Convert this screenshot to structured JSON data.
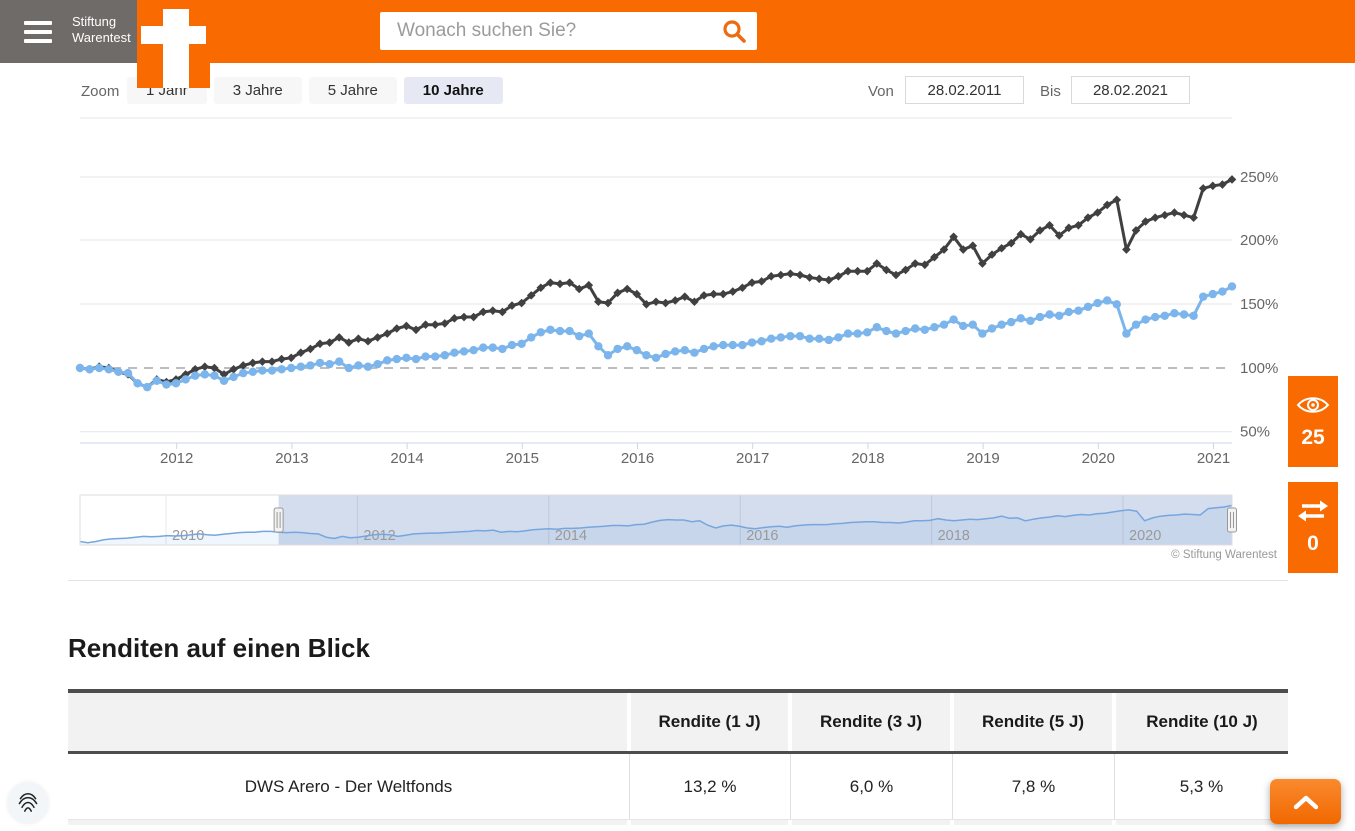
{
  "header": {
    "brand": {
      "line1": "Stiftung",
      "line2": "Warentest"
    },
    "search": {
      "placeholder": "Wonach suchen Sie?"
    }
  },
  "toolbar": {
    "zoom_label": "Zoom",
    "ranges": [
      {
        "label": "1 Jahr",
        "selected": false
      },
      {
        "label": "3 Jahre",
        "selected": false
      },
      {
        "label": "5 Jahre",
        "selected": false
      },
      {
        "label": "10 Jahre",
        "selected": true
      }
    ],
    "von_label": "Von",
    "von_value": "28.02.2011",
    "bis_label": "Bis",
    "bis_value": "28.02.2021"
  },
  "chart_data": {
    "type": "line",
    "interval": "monthly",
    "x_range": {
      "from": "28.02.2011",
      "to": "28.02.2021"
    },
    "yticks": [
      "250%",
      "200%",
      "150%",
      "100%",
      "50%"
    ],
    "ytick_values": [
      250,
      200,
      150,
      100,
      50
    ],
    "xticks": [
      "2012",
      "2013",
      "2014",
      "2015",
      "2016",
      "2017",
      "2018",
      "2019",
      "2020",
      "2021"
    ],
    "baseline_pct": 100,
    "grid": true,
    "legend": "none",
    "series": [
      {
        "name": "series-dark",
        "color": "#404040",
        "marker": "diamond",
        "values": [
          100,
          99,
          101,
          100,
          97,
          95,
          88,
          85,
          91,
          89,
          91,
          95,
          99,
          101,
          100,
          95,
          99,
          102,
          104,
          105,
          105,
          107,
          108,
          112,
          115,
          119,
          120,
          124,
          120,
          123,
          121,
          124,
          127,
          131,
          133,
          130,
          134,
          134,
          135,
          139,
          140,
          140,
          144,
          145,
          144,
          149,
          151,
          157,
          163,
          167,
          166,
          167,
          162,
          165,
          152,
          151,
          159,
          162,
          158,
          150,
          152,
          151,
          153,
          156,
          152,
          157,
          158,
          158,
          160,
          163,
          167,
          168,
          172,
          173,
          174,
          173,
          171,
          170,
          169,
          172,
          176,
          176,
          176,
          182,
          177,
          173,
          177,
          182,
          181,
          187,
          193,
          203,
          193,
          196,
          182,
          189,
          194,
          198,
          205,
          201,
          208,
          212,
          204,
          210,
          212,
          218,
          222,
          228,
          232,
          193,
          208,
          215,
          218,
          220,
          222,
          220,
          218,
          241,
          243,
          244,
          248
        ]
      },
      {
        "name": "series-blue",
        "color": "#7cb5ec",
        "marker": "circle",
        "values": [
          100,
          99,
          100,
          99,
          97,
          96,
          88,
          85,
          90,
          87,
          88,
          91,
          94,
          95,
          94,
          90,
          93,
          96,
          97,
          98,
          98,
          99,
          100,
          101,
          102,
          104,
          103,
          105,
          100,
          102,
          101,
          103,
          106,
          107,
          108,
          107,
          109,
          109,
          110,
          112,
          113,
          114,
          116,
          116,
          115,
          118,
          119,
          124,
          128,
          130,
          129,
          129,
          125,
          127,
          117,
          110,
          115,
          117,
          114,
          110,
          108,
          111,
          113,
          114,
          112,
          115,
          117,
          118,
          118,
          118,
          120,
          121,
          123,
          124,
          125,
          125,
          123,
          123,
          122,
          124,
          127,
          127,
          128,
          132,
          129,
          127,
          129,
          131,
          130,
          132,
          134,
          138,
          133,
          134,
          127,
          131,
          134,
          136,
          139,
          137,
          140,
          142,
          141,
          144,
          145,
          148,
          151,
          153,
          150,
          127,
          134,
          138,
          140,
          141,
          143,
          142,
          141,
          156,
          158,
          160,
          164
        ]
      }
    ],
    "navigator": {
      "xticks": [
        "2010",
        "2012",
        "2014",
        "2016",
        "2018",
        "2020"
      ],
      "color": "#7cb5ec",
      "selected_from_index": 25,
      "values": [
        78,
        75,
        78,
        82,
        84,
        85,
        86,
        88,
        90,
        89,
        90,
        92,
        91,
        92,
        94,
        96,
        94,
        93,
        95,
        97,
        99,
        100,
        100,
        102,
        102,
        100,
        99,
        100,
        99,
        97,
        96,
        88,
        85,
        90,
        87,
        88,
        91,
        94,
        95,
        94,
        90,
        93,
        96,
        97,
        98,
        98,
        99,
        100,
        101,
        102,
        104,
        103,
        105,
        100,
        102,
        101,
        103,
        106,
        107,
        108,
        107,
        109,
        109,
        110,
        112,
        113,
        114,
        116,
        116,
        115,
        118,
        119,
        124,
        128,
        130,
        129,
        129,
        125,
        127,
        117,
        110,
        115,
        117,
        114,
        110,
        108,
        111,
        113,
        114,
        112,
        115,
        117,
        118,
        118,
        118,
        120,
        121,
        123,
        124,
        125,
        125,
        123,
        123,
        122,
        124,
        127,
        127,
        128,
        132,
        129,
        127,
        129,
        131,
        130,
        132,
        134,
        138,
        133,
        134,
        127,
        131,
        134,
        136,
        139,
        137,
        140,
        142,
        141,
        144,
        145,
        148,
        151,
        153,
        150,
        127,
        134,
        138,
        140,
        141,
        143,
        142,
        141,
        156,
        158,
        160,
        164
      ]
    },
    "credit": "© Stiftung Warentest"
  },
  "floating": {
    "views": {
      "count": "25"
    },
    "compare": {
      "count": "0"
    }
  },
  "section": {
    "title": "Renditen auf einen Blick"
  },
  "table": {
    "columns": [
      "",
      "Rendite (1 J)",
      "Rendite (3 J)",
      "Rendite (5 J)",
      "Rendite (10 J)"
    ],
    "rows": [
      {
        "name": "DWS Arero - Der Weltfonds",
        "values": [
          "13,2 %",
          "6,0 %",
          "7,8 %",
          "5,3 %"
        ]
      }
    ]
  }
}
